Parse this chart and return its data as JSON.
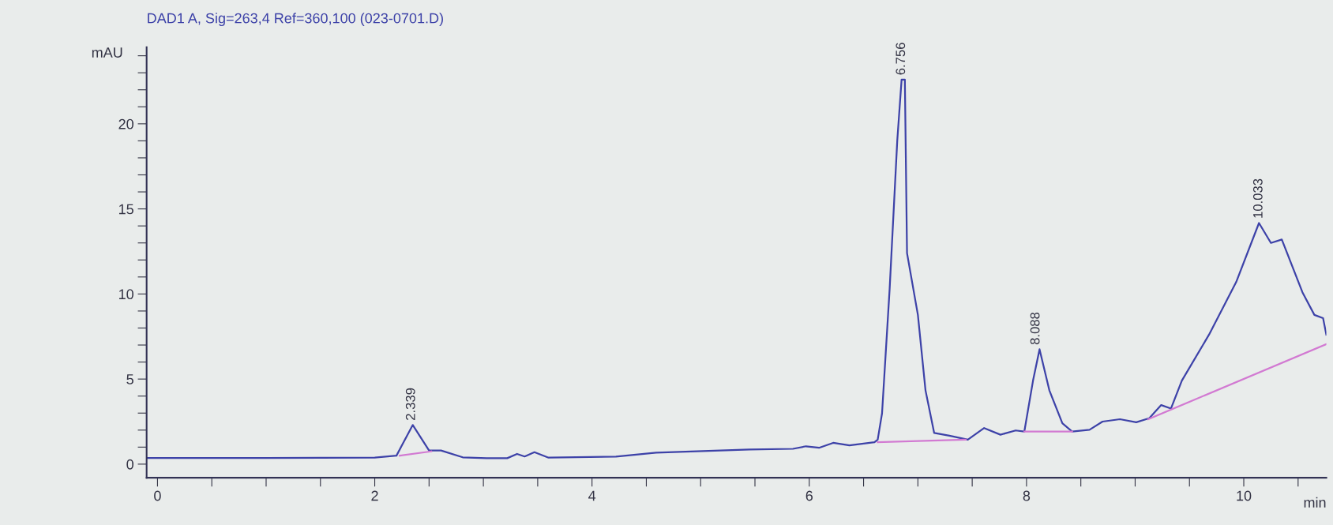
{
  "chart_data": {
    "type": "line",
    "title": "DAD1 A, Sig=263,4 Ref=360,100 (023-0701.D)",
    "xlabel": "min",
    "ylabel": "mAU",
    "xlim": [
      -0.1,
      10.76
    ],
    "ylim": [
      -0.8,
      24.5
    ],
    "xticks": [
      0,
      {
        "value": 0.5,
        "label": null
      },
      {
        "value": 1,
        "label": null
      },
      {
        "value": 1.5,
        "label": null
      },
      2,
      {
        "value": 2.5,
        "label": null
      },
      {
        "value": 3,
        "label": null
      },
      {
        "value": 3.5,
        "label": null
      },
      4,
      {
        "value": 4.5,
        "label": null
      },
      {
        "value": 5,
        "label": null
      },
      {
        "value": 5.5,
        "label": null
      },
      6,
      {
        "value": 6.5,
        "label": null
      },
      {
        "value": 7,
        "label": null
      },
      {
        "value": 7.5,
        "label": null
      },
      8,
      {
        "value": 8.5,
        "label": null
      },
      {
        "value": 9,
        "label": null
      },
      {
        "value": 9.5,
        "label": null
      },
      10,
      {
        "value": 10.5,
        "label": null
      }
    ],
    "yticks": [
      0,
      {
        "value": 1,
        "label": null
      },
      {
        "value": 2,
        "label": null
      },
      {
        "value": 3,
        "label": null
      },
      {
        "value": 4,
        "label": null
      },
      5,
      {
        "value": 6,
        "label": null
      },
      {
        "value": 7,
        "label": null
      },
      {
        "value": 8,
        "label": null
      },
      {
        "value": 9,
        "label": null
      },
      10,
      {
        "value": 11,
        "label": null
      },
      {
        "value": 12,
        "label": null
      },
      {
        "value": 13,
        "label": null
      },
      {
        "value": 14,
        "label": null
      },
      15,
      {
        "value": 16,
        "label": null
      },
      {
        "value": 17,
        "label": null
      },
      {
        "value": 18,
        "label": null
      },
      {
        "value": 19,
        "label": null
      },
      20,
      {
        "value": 21,
        "label": null
      },
      {
        "value": 22,
        "label": null
      },
      {
        "value": 23,
        "label": null
      },
      {
        "value": 24,
        "label": null
      }
    ],
    "grid": false,
    "line_style": "solid",
    "marker": "none",
    "series": [
      {
        "color": "#3d42a8",
        "x": [
          -0.1,
          1.0,
          2.0,
          2.2,
          2.35,
          2.5,
          2.61,
          2.81,
          3.03,
          3.22,
          3.31,
          3.38,
          3.47,
          3.6,
          4.22,
          4.59,
          5.45,
          5.85,
          5.97,
          6.09,
          6.22,
          6.37,
          6.6,
          6.63,
          6.67,
          6.74,
          6.81,
          6.85,
          6.88,
          6.9,
          7.0,
          7.07,
          7.15,
          7.29,
          7.46,
          7.61,
          7.76,
          7.9,
          7.98,
          8.06,
          8.12,
          8.21,
          8.33,
          8.42,
          8.58,
          8.7,
          8.86,
          9.01,
          9.13,
          9.24,
          9.33,
          9.43,
          9.68,
          9.93,
          10.14,
          10.25,
          10.35,
          10.54,
          10.65,
          10.73,
          10.76
        ],
        "values": [
          0.36,
          0.36,
          0.38,
          0.5,
          2.3,
          0.8,
          0.8,
          0.4,
          0.35,
          0.35,
          0.6,
          0.45,
          0.7,
          0.38,
          0.44,
          0.67,
          0.86,
          0.9,
          1.05,
          0.96,
          1.25,
          1.1,
          1.29,
          1.44,
          2.99,
          10.3,
          19.0,
          22.6,
          22.6,
          12.4,
          8.77,
          4.34,
          1.83,
          1.67,
          1.44,
          2.12,
          1.73,
          1.98,
          1.92,
          4.91,
          6.75,
          4.34,
          2.4,
          1.92,
          2.02,
          2.5,
          2.64,
          2.46,
          2.7,
          3.47,
          3.27,
          4.91,
          7.61,
          10.7,
          14.17,
          13.0,
          13.2,
          10.1,
          8.77,
          8.58,
          7.61
        ]
      },
      {
        "color": "#d27ad2",
        "x": [
          2.23,
          2.52,
          2.6,
          6.63,
          7.44,
          7.5,
          7.98,
          8.42,
          8.5,
          9.12,
          10.76
        ],
        "values": [
          0.5,
          0.75,
          null,
          1.29,
          1.44,
          null,
          1.92,
          1.92,
          null,
          2.64,
          7.05
        ]
      }
    ],
    "annotations": [
      {
        "text": "2.339",
        "x": 2.339,
        "y": 2.3
      },
      {
        "text": "6.756",
        "x": 6.85,
        "y": 22.6
      },
      {
        "text": "8.088",
        "x": 8.088,
        "y": 6.75
      },
      {
        "text": "10.033",
        "x": 10.14,
        "y": 14.17
      }
    ]
  }
}
